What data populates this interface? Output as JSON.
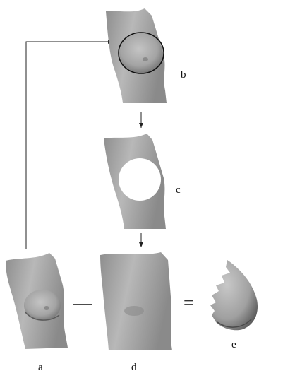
{
  "figure": {
    "labels": {
      "a": "a",
      "b": "b",
      "c": "c",
      "d": "d",
      "e": "e"
    },
    "operators": {
      "minus": "—",
      "equals": "="
    }
  },
  "colors": {
    "surface_light": "#bdbdbd",
    "surface_mid": "#9a9a9a",
    "surface_dark": "#6a6a6a",
    "contour": "#111111",
    "arrow": "#222222",
    "hole": "#ffffff"
  }
}
